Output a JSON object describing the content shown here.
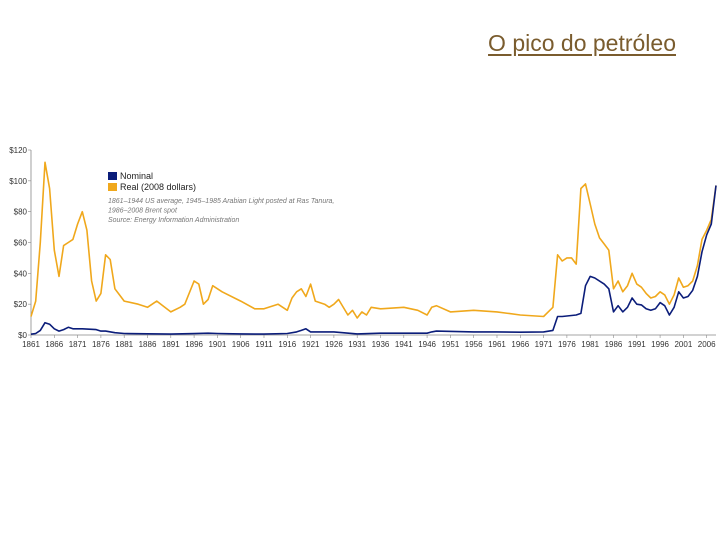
{
  "slide": {
    "title": "O pico do petróleo"
  },
  "chart_data": {
    "type": "line",
    "title": "",
    "xlabel": "",
    "ylabel": "",
    "xlim": [
      1861,
      2008
    ],
    "ylim": [
      0,
      120
    ],
    "grid": false,
    "legend_position": "top-left",
    "y_ticks": [
      {
        "value": 0,
        "label": "$0"
      },
      {
        "value": 20,
        "label": "$20"
      },
      {
        "value": 40,
        "label": "$40"
      },
      {
        "value": 60,
        "label": "$60"
      },
      {
        "value": 80,
        "label": "$80"
      },
      {
        "value": 100,
        "label": "$100"
      },
      {
        "value": 120,
        "label": "$120"
      }
    ],
    "x_ticks": [
      {
        "value": 1861,
        "label": "1861"
      },
      {
        "value": 1866,
        "label": "1866"
      },
      {
        "value": 1871,
        "label": "1871"
      },
      {
        "value": 1876,
        "label": "1876"
      },
      {
        "value": 1881,
        "label": "1881"
      },
      {
        "value": 1886,
        "label": "1886"
      },
      {
        "value": 1891,
        "label": "1891"
      },
      {
        "value": 1896,
        "label": "1896"
      },
      {
        "value": 1901,
        "label": "1901"
      },
      {
        "value": 1906,
        "label": "1906"
      },
      {
        "value": 1911,
        "label": "1911"
      },
      {
        "value": 1916,
        "label": "1916"
      },
      {
        "value": 1921,
        "label": "1921"
      },
      {
        "value": 1926,
        "label": "1926"
      },
      {
        "value": 1931,
        "label": "1931"
      },
      {
        "value": 1936,
        "label": "1936"
      },
      {
        "value": 1941,
        "label": "1941"
      },
      {
        "value": 1946,
        "label": "1946"
      },
      {
        "value": 1951,
        "label": "1951"
      },
      {
        "value": 1956,
        "label": "1956"
      },
      {
        "value": 1961,
        "label": "1961"
      },
      {
        "value": 1966,
        "label": "1966"
      },
      {
        "value": 1971,
        "label": "1971"
      },
      {
        "value": 1976,
        "label": "1976"
      },
      {
        "value": 1981,
        "label": "1981"
      },
      {
        "value": 1986,
        "label": "1986"
      },
      {
        "value": 1991,
        "label": "1991"
      },
      {
        "value": 1996,
        "label": "1996"
      },
      {
        "value": 2001,
        "label": "2001"
      },
      {
        "value": 2006,
        "label": "2006"
      }
    ],
    "notes": [
      "1861–1944 US average, 1945–1985 Arabian Light posted at Ras Tanura,",
      "1986–2008 Brent spot",
      "Source: Energy Information Administration"
    ],
    "series": [
      {
        "name": "Nominal",
        "color": "#0b1d7a",
        "x": [
          1861,
          1862,
          1863,
          1864,
          1865,
          1866,
          1867,
          1868,
          1869,
          1870,
          1872,
          1875,
          1876,
          1877,
          1879,
          1881,
          1886,
          1891,
          1896,
          1899,
          1901,
          1906,
          1911,
          1916,
          1918,
          1919,
          1920,
          1921,
          1926,
          1931,
          1936,
          1941,
          1946,
          1947,
          1948,
          1956,
          1961,
          1966,
          1971,
          1973,
          1974,
          1975,
          1978,
          1979,
          1980,
          1981,
          1982,
          1984,
          1985,
          1986,
          1987,
          1988,
          1989,
          1990,
          1991,
          1992,
          1993,
          1994,
          1995,
          1996,
          1997,
          1998,
          1999,
          2000,
          2001,
          2002,
          2003,
          2004,
          2005,
          2006,
          2007,
          2008
        ],
        "y": [
          0.5,
          1.0,
          3.0,
          8.0,
          7.0,
          4.0,
          2.5,
          3.5,
          5.0,
          4.0,
          4.0,
          3.5,
          2.5,
          2.5,
          1.5,
          1.0,
          0.8,
          0.6,
          0.9,
          1.2,
          1.0,
          0.7,
          0.6,
          1.0,
          2.0,
          3.0,
          4.0,
          2.0,
          2.0,
          0.7,
          1.2,
          1.2,
          1.2,
          2.0,
          2.5,
          2.0,
          2.0,
          1.8,
          2.0,
          3.0,
          12.0,
          12.0,
          13.0,
          14.0,
          32.0,
          38.0,
          37.0,
          33.0,
          30.0,
          15.0,
          19.0,
          15.0,
          18.0,
          24.0,
          20.0,
          19.5,
          17.0,
          16.0,
          17.0,
          21.0,
          19.0,
          13.0,
          18.0,
          28.0,
          24.0,
          25.0,
          29.0,
          38.0,
          54.0,
          65.0,
          72.0,
          97.0
        ]
      },
      {
        "name": "Real (2008 dollars)",
        "color": "#f0a81c",
        "x": [
          1861,
          1862,
          1863,
          1864,
          1865,
          1866,
          1867,
          1868,
          1869,
          1870,
          1871,
          1872,
          1873,
          1874,
          1875,
          1876,
          1877,
          1878,
          1879,
          1880,
          1881,
          1884,
          1886,
          1888,
          1891,
          1893,
          1894,
          1896,
          1897,
          1898,
          1899,
          1900,
          1902,
          1906,
          1909,
          1911,
          1914,
          1916,
          1917,
          1918,
          1919,
          1920,
          1921,
          1922,
          1924,
          1925,
          1926,
          1927,
          1929,
          1930,
          1931,
          1932,
          1933,
          1934,
          1936,
          1941,
          1944,
          1946,
          1947,
          1948,
          1951,
          1956,
          1961,
          1966,
          1971,
          1972,
          1973,
          1974,
          1975,
          1976,
          1977,
          1978,
          1979,
          1980,
          1981,
          1982,
          1983,
          1984,
          1985,
          1986,
          1987,
          1988,
          1989,
          1990,
          1991,
          1992,
          1993,
          1994,
          1995,
          1996,
          1997,
          1998,
          1999,
          2000,
          2001,
          2002,
          2003,
          2004,
          2005,
          2006,
          2007,
          2008
        ],
        "y": [
          12,
          22,
          60,
          112,
          95,
          55,
          38,
          58,
          60,
          62,
          72,
          80,
          68,
          35,
          22,
          27,
          52,
          49,
          30,
          26,
          22,
          20,
          18,
          22,
          15,
          18,
          20,
          35,
          33,
          20,
          23,
          32,
          28,
          22,
          17,
          17,
          20,
          16,
          24,
          28,
          30,
          25,
          33,
          22,
          20,
          18,
          20,
          23,
          13,
          16,
          11,
          15,
          13,
          18,
          17,
          18,
          16,
          13,
          18,
          19,
          15,
          16,
          15,
          13,
          12,
          15,
          18,
          52,
          48,
          50,
          50,
          46,
          95,
          98,
          85,
          72,
          63,
          59,
          55,
          30,
          35,
          28,
          32,
          40,
          33,
          31,
          27,
          24,
          25,
          28,
          26,
          20,
          26,
          37,
          31,
          32,
          35,
          45,
          62,
          68,
          75,
          97
        ]
      }
    ]
  }
}
